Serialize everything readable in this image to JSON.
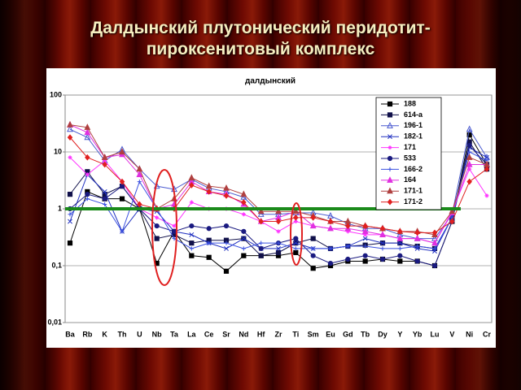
{
  "slide": {
    "title_lines": [
      "Далдынский плутонический перидотит-",
      "пироксенитовый комплекс"
    ]
  },
  "chart_data": {
    "type": "line",
    "title": "далдынский",
    "categories": [
      "Ba",
      "Rb",
      "K",
      "Th",
      "U",
      "Nb",
      "Ta",
      "La",
      "Ce",
      "Sr",
      "Nd",
      "Hf",
      "Zr",
      "Ti",
      "Sm",
      "Eu",
      "Gd",
      "Tb",
      "Dy",
      "Y",
      "Yb",
      "Lu",
      "V",
      "Ni",
      "Cr"
    ],
    "ylim": [
      0.01,
      100
    ],
    "log_scale": true,
    "grid": true,
    "yticks": [
      {
        "value": 0.01,
        "label": "0,01"
      },
      {
        "value": 0.1,
        "label": "0,1"
      },
      1,
      10,
      100
    ],
    "reference_line": {
      "value": 1,
      "color": "#1a8a1a"
    },
    "legend": "upper right",
    "series": [
      {
        "name": "188",
        "color": "#000000",
        "values": [
          0.25,
          2,
          1.5,
          1.5,
          1,
          0.11,
          0.4,
          0.15,
          0.14,
          0.08,
          0.15,
          0.15,
          0.15,
          0.17,
          0.09,
          0.1,
          0.12,
          0.12,
          0.13,
          0.12,
          0.12,
          0.1,
          0.6,
          20,
          6
        ]
      },
      {
        "name": "614-a",
        "color": "#10104a",
        "values": [
          1.8,
          4.5,
          1.8,
          2.5,
          1,
          0.3,
          0.35,
          0.25,
          0.28,
          0.28,
          0.3,
          0.15,
          0.17,
          0.25,
          0.3,
          0.2,
          0.22,
          0.23,
          0.25,
          0.25,
          0.22,
          0.2,
          0.7,
          15,
          5
        ]
      },
      {
        "name": "196-1",
        "color": "#4a5ad0",
        "values": [
          25,
          18,
          7,
          11,
          5,
          2.5,
          2.2,
          3.3,
          2.3,
          2,
          1.6,
          0.8,
          0.8,
          0.85,
          0.85,
          0.75,
          0.55,
          0.45,
          0.45,
          0.35,
          0.3,
          0.3,
          0.8,
          25,
          8
        ]
      },
      {
        "name": "182-1",
        "color": "#2030c0",
        "values": [
          0.6,
          4,
          2,
          0.4,
          1,
          0.9,
          0.4,
          0.35,
          0.25,
          0.2,
          0.3,
          0.2,
          0.2,
          0.25,
          0.2,
          0.2,
          0.22,
          0.3,
          0.25,
          0.25,
          0.2,
          0.18,
          0.7,
          12,
          8
        ]
      },
      {
        "name": "171",
        "color": "#ff33ff",
        "values": [
          8,
          4,
          7,
          3,
          1,
          0.7,
          0.5,
          1.3,
          1,
          1,
          0.8,
          0.6,
          0.4,
          0.6,
          0.5,
          0.45,
          0.4,
          0.35,
          0.35,
          0.3,
          0.3,
          0.25,
          0.9,
          5,
          1.7
        ]
      },
      {
        "name": "533",
        "color": "#1a1a80",
        "values": [
          1,
          1.8,
          1.5,
          2.5,
          1,
          0.5,
          0.4,
          0.5,
          0.45,
          0.5,
          0.4,
          0.2,
          0.25,
          0.3,
          0.15,
          0.11,
          0.13,
          0.15,
          0.13,
          0.15,
          0.12,
          0.1,
          0.6,
          13,
          6
        ]
      },
      {
        "name": "166-2",
        "color": "#3a50e0",
        "values": [
          0.8,
          1.5,
          1.2,
          0.4,
          3,
          1,
          0.3,
          0.2,
          0.25,
          0.25,
          0.2,
          0.25,
          0.25,
          0.2,
          0.2,
          0.2,
          0.22,
          0.22,
          0.2,
          0.2,
          0.22,
          0.2,
          0.7,
          10,
          7
        ]
      },
      {
        "name": "164",
        "color": "#e030e0",
        "values": [
          30,
          22,
          8,
          9,
          4,
          1,
          1.2,
          3,
          2,
          1.8,
          1.2,
          0.6,
          0.7,
          0.9,
          0.5,
          0.45,
          0.45,
          0.4,
          0.35,
          0.3,
          0.3,
          0.25,
          0.85,
          6,
          6
        ]
      },
      {
        "name": "171-1",
        "color": "#b04040",
        "values": [
          30,
          27,
          8,
          10,
          5,
          1,
          1.5,
          3.5,
          2.5,
          2.3,
          1.8,
          0.9,
          0.9,
          0.9,
          0.75,
          0.6,
          0.6,
          0.5,
          0.45,
          0.4,
          0.4,
          0.35,
          0.9,
          8,
          6
        ]
      },
      {
        "name": "171-2",
        "color": "#e02020",
        "values": [
          18,
          8,
          6,
          3,
          1.2,
          1,
          1,
          2.6,
          2,
          1.7,
          1.3,
          0.6,
          0.6,
          0.7,
          0.7,
          0.6,
          0.5,
          0.5,
          0.45,
          0.4,
          0.38,
          0.38,
          0.6,
          3,
          5
        ]
      }
    ]
  }
}
